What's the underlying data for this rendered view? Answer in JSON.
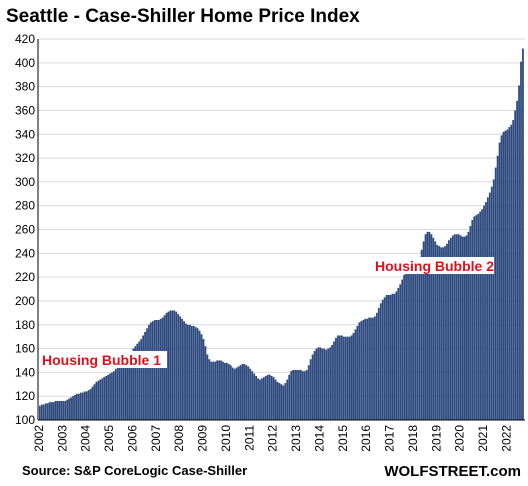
{
  "chart_data": {
    "type": "bar",
    "title": "Seattle - Case-Shiller Home Price Index",
    "ylim": [
      100,
      420
    ],
    "yticks": [
      100,
      120,
      140,
      160,
      180,
      200,
      220,
      240,
      260,
      280,
      300,
      320,
      340,
      360,
      380,
      400,
      420
    ],
    "xticks": [
      "2002",
      "2003",
      "2004",
      "2005",
      "2006",
      "2007",
      "2008",
      "2009",
      "2010",
      "2011",
      "2012",
      "2013",
      "2014",
      "2015",
      "2016",
      "2017",
      "2018",
      "2019",
      "2020",
      "2021",
      "2022"
    ],
    "x_start": "2002-01",
    "frequency": "monthly",
    "grid": true,
    "bar_color": "#2e4a7e",
    "values": [
      112,
      113,
      113,
      114,
      114,
      115,
      115,
      115,
      116,
      116,
      116,
      116,
      116,
      116,
      117,
      118,
      119,
      120,
      121,
      122,
      122,
      123,
      123,
      124,
      124,
      125,
      126,
      128,
      130,
      132,
      133,
      134,
      135,
      136,
      137,
      138,
      139,
      140,
      141,
      143,
      145,
      147,
      149,
      151,
      153,
      155,
      157,
      158,
      160,
      162,
      164,
      166,
      168,
      171,
      174,
      177,
      180,
      182,
      183,
      184,
      184,
      184,
      185,
      186,
      188,
      190,
      191,
      192,
      192,
      192,
      191,
      189,
      187,
      185,
      183,
      181,
      180,
      180,
      179,
      179,
      178,
      177,
      175,
      172,
      168,
      162,
      155,
      151,
      149,
      149,
      149,
      150,
      150,
      150,
      149,
      148,
      148,
      147,
      146,
      144,
      143,
      144,
      145,
      146,
      147,
      147,
      146,
      145,
      143,
      141,
      139,
      137,
      135,
      134,
      135,
      136,
      137,
      138,
      138,
      137,
      136,
      134,
      132,
      131,
      130,
      129,
      131,
      134,
      138,
      141,
      142,
      142,
      142,
      142,
      142,
      141,
      141,
      142,
      146,
      151,
      155,
      158,
      160,
      161,
      161,
      160,
      160,
      159,
      160,
      161,
      163,
      166,
      169,
      171,
      171,
      171,
      170,
      170,
      170,
      170,
      171,
      173,
      176,
      179,
      182,
      183,
      184,
      185,
      185,
      186,
      186,
      186,
      187,
      190,
      194,
      198,
      201,
      203,
      205,
      205,
      205,
      206,
      206,
      208,
      211,
      214,
      218,
      222,
      224,
      225,
      225,
      226,
      226,
      227,
      231,
      237,
      243,
      250,
      256,
      258,
      258,
      256,
      253,
      250,
      247,
      246,
      245,
      245,
      246,
      248,
      251,
      253,
      255,
      256,
      256,
      256,
      255,
      254,
      254,
      255,
      258,
      263,
      268,
      271,
      272,
      273,
      275,
      277,
      280,
      283,
      287,
      291,
      296,
      302,
      312,
      322,
      333,
      339,
      342,
      343,
      344,
      346,
      348,
      352,
      360,
      368,
      381,
      401,
      412
    ]
  },
  "annotations": {
    "bubble1": "Housing Bubble 1",
    "bubble2": "Housing Bubble 2"
  },
  "footer": {
    "source": "Source: S&P CoreLogic Case-Shiller",
    "brand": "WOLFSTREET.com"
  }
}
